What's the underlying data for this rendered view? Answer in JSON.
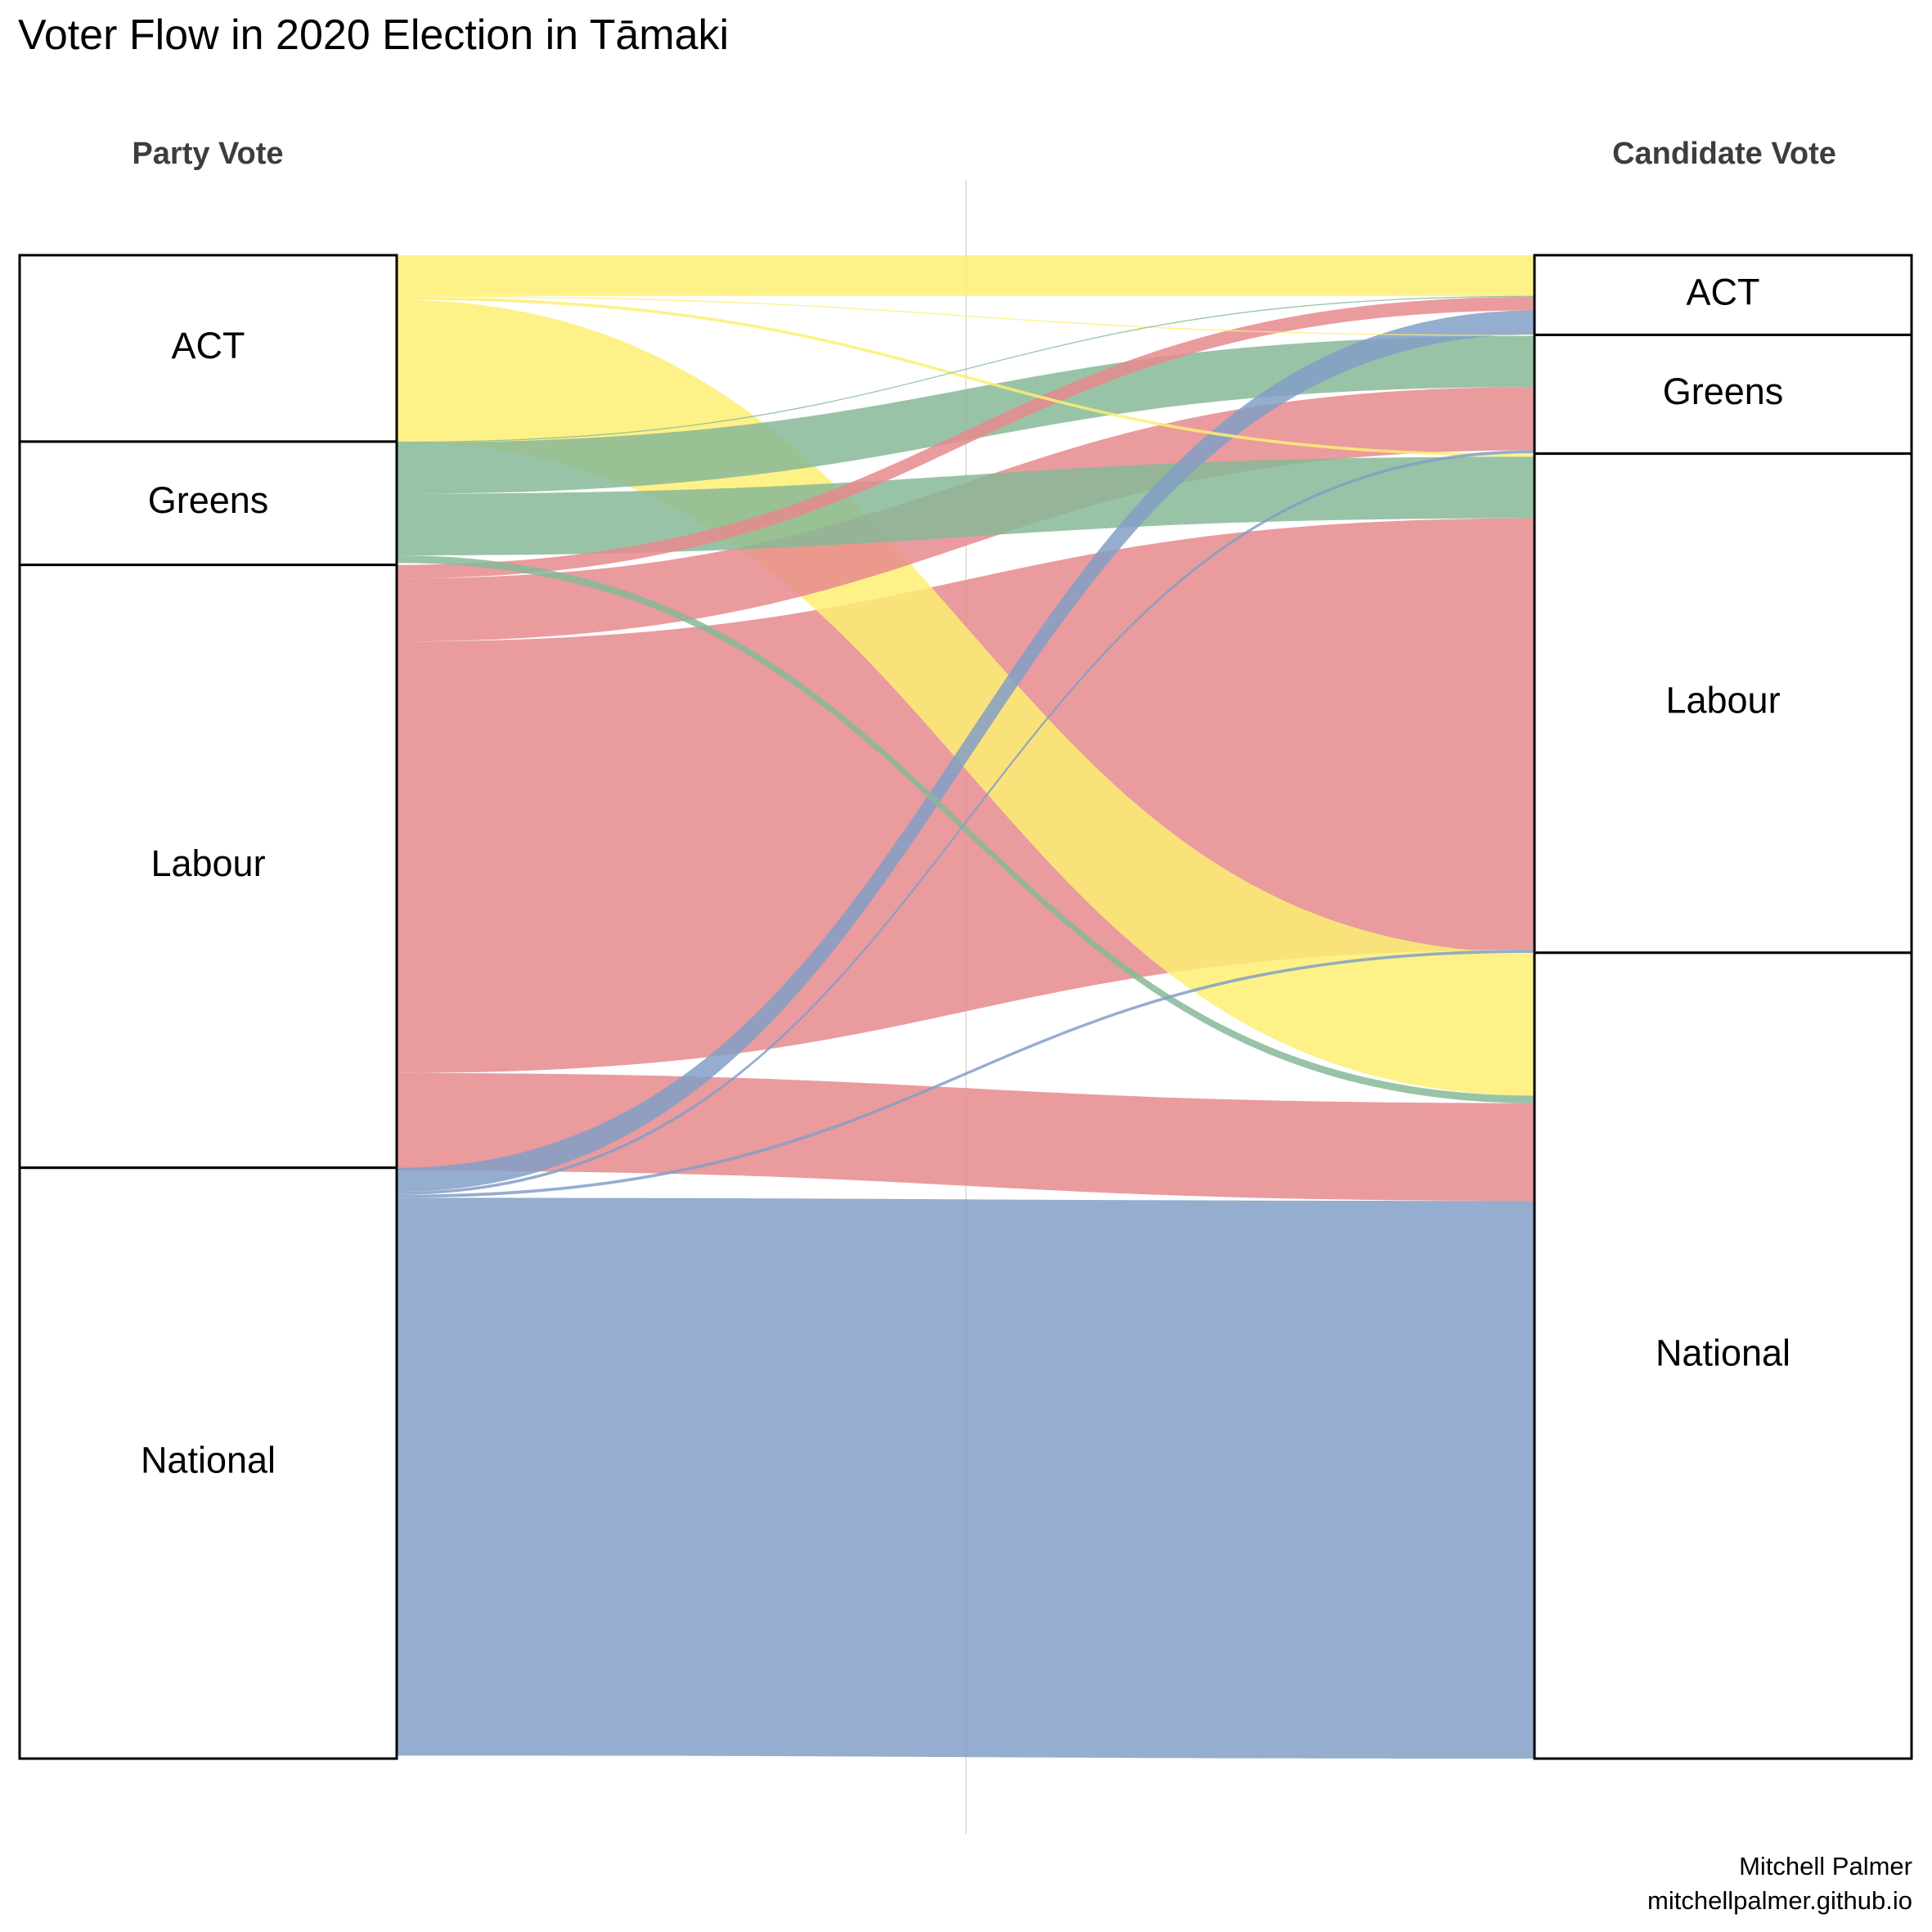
{
  "chart_data": {
    "type": "sankey",
    "title": "Voter Flow in 2020 Election in Tāmaki",
    "left_heading": "Party Vote",
    "right_heading": "Candidate Vote",
    "caption": [
      "Mitchell Palmer",
      "mitchellpalmer.github.io"
    ],
    "colors": {
      "ACT": "#fdee73",
      "Greens": "#87b896",
      "Labour": "#e6898d",
      "National": "#839fc6"
    },
    "left_nodes": [
      {
        "name": "ACT",
        "share": 0.124
      },
      {
        "name": "Greens",
        "share": 0.082
      },
      {
        "name": "Labour",
        "share": 0.401
      },
      {
        "name": "National",
        "share": 0.393
      }
    ],
    "right_nodes": [
      {
        "name": "ACT",
        "share": 0.053
      },
      {
        "name": "Greens",
        "share": 0.079
      },
      {
        "name": "Labour",
        "share": 0.332
      },
      {
        "name": "National",
        "share": 0.536
      }
    ],
    "flows": [
      {
        "from": "ACT",
        "to": "ACT",
        "share": 0.027
      },
      {
        "from": "ACT",
        "to": "Greens",
        "share": 0.0007
      },
      {
        "from": "ACT",
        "to": "Labour",
        "share": 0.002
      },
      {
        "from": "ACT",
        "to": "National",
        "share": 0.095
      },
      {
        "from": "Greens",
        "to": "ACT",
        "share": 0.0007
      },
      {
        "from": "Greens",
        "to": "Greens",
        "share": 0.034
      },
      {
        "from": "Greens",
        "to": "Labour",
        "share": 0.041
      },
      {
        "from": "Greens",
        "to": "National",
        "share": 0.005
      },
      {
        "from": "Labour",
        "to": "ACT",
        "share": 0.009
      },
      {
        "from": "Labour",
        "to": "Greens",
        "share": 0.042
      },
      {
        "from": "Labour",
        "to": "Labour",
        "share": 0.287
      },
      {
        "from": "Labour",
        "to": "National",
        "share": 0.065
      },
      {
        "from": "National",
        "to": "ACT",
        "share": 0.016
      },
      {
        "from": "National",
        "to": "Greens",
        "share": 0.002
      },
      {
        "from": "National",
        "to": "Labour",
        "share": 0.002
      },
      {
        "from": "National",
        "to": "National",
        "share": 0.371
      }
    ]
  }
}
